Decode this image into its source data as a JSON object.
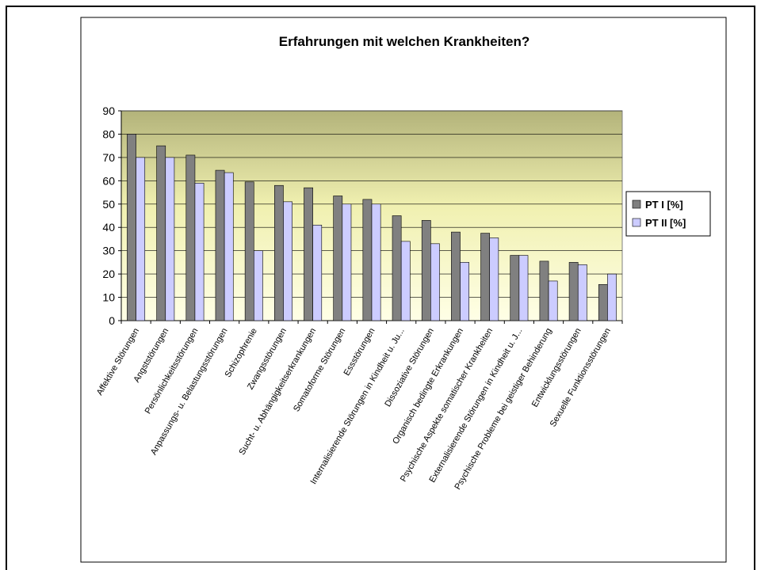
{
  "chart_data": {
    "type": "bar",
    "title": "Erfahrungen mit welchen Krankheiten?",
    "categories": [
      "Affektive Störungen",
      "Angststörungen",
      "Persönlichkeitsstörungen",
      "Anpassungs- u. Belastungsstörungen",
      "Schizophrenie",
      "Zwangsstörungen",
      "Sucht- u. Abhängigkeitserkrankungen",
      "Somatoforme Störungen",
      "Essstörungen",
      "Internalisierende Störungen in Kindheit u. Ju...",
      "Dissoziative Störungen",
      "Organisch bedingte Erkrankungen",
      "Psychische Aspekte somatischer Krankheiten",
      "Externalisierende Störungen in Kindheit u. J...",
      "Psychische Probleme bei geistiger Behinderung",
      "Entwicklungsstörungen",
      "Sexuelle Funktionsstörungen"
    ],
    "series": [
      {
        "name": "PT I [%]",
        "color": "#808080",
        "values": [
          80,
          75,
          71,
          64.5,
          59.5,
          58,
          57,
          53.5,
          52,
          45,
          43,
          38,
          37.5,
          28,
          25.5,
          25,
          15.5
        ]
      },
      {
        "name": "PT II [%]",
        "color": "#ccccff",
        "values": [
          70,
          70,
          59,
          63.5,
          30,
          51,
          41,
          50,
          50,
          34,
          33,
          25,
          35.5,
          28,
          17,
          24,
          20
        ]
      }
    ],
    "ylim": [
      0,
      90
    ],
    "yticks": [
      0,
      10,
      20,
      30,
      40,
      50,
      60,
      70,
      80,
      90
    ],
    "grid": true,
    "legend": "right"
  }
}
